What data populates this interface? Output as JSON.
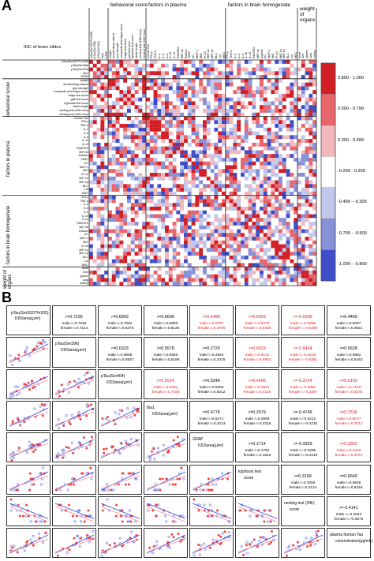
{
  "panels": {
    "a_letter": "A",
    "b_letter": "B"
  },
  "heatmap": {
    "corner_label": "IHC of brain slides",
    "groups": [
      "behavioral score",
      "factors in plasma",
      "factors in brain homogenate",
      "weight of organs"
    ],
    "row_groups": [
      "behavioral score",
      "factors in plasma",
      "factors in brain homogenate",
      "weight of organs"
    ],
    "ihc_rows": [
      "pTau(Ser202/Thr205)",
      "pTau(Ser396)",
      "pTau(Ser404)",
      "Iba1",
      "GFAP"
    ],
    "behavior_rows": [
      "weight",
      "accelerating rotarod",
      "grip strength",
      "composite phenotype score",
      "ledge test score",
      "gait test score",
      "kyphosis test score",
      "stride length",
      "nesting test (18th hour)",
      "nesting test (24th hour)"
    ],
    "plasma_rows": [
      "human Tau",
      "IFN-γ",
      "TNF-α",
      "IL-2",
      "IL-5",
      "IL-6",
      "IL-10",
      "IL-13",
      "RANTES",
      "MIP-3α",
      "Eotaxin",
      "TARC",
      "KC",
      "MCP-1",
      "MIG",
      "IP-10",
      "MIP-1α",
      "MIP-1β",
      "BLC",
      "LIX",
      "MDC"
    ],
    "brain_rows": [
      "IFN-γ",
      "TNF-α",
      "IL-2",
      "IL-5",
      "IL-6",
      "IL-10",
      "IL-13",
      "RANTES",
      "MIP-3α",
      "Eotaxin",
      "KC",
      "MCP-1",
      "MIG",
      "IP-10",
      "MIP-1α",
      "MIP-1β",
      "BLC",
      "LIX",
      "MDC"
    ],
    "organ_rows": [
      "heart",
      "liver",
      "spleen",
      "lung",
      "kidney"
    ],
    "legend": [
      "0.800 - 1.000",
      "0.500 - 0.799",
      "0.300 - 0.499",
      "-0.299 - 0.299",
      "-0.499 - -0.300",
      "-0.799 - -0.500",
      "-1.000 - -0.800"
    ],
    "legend_colors": [
      "#d11f25",
      "#e7656b",
      "#f2b8bb",
      "#ffffff",
      "#c2c8ec",
      "#8791d8",
      "#3f4ec8"
    ]
  },
  "matrix": {
    "variables": [
      {
        "name": "pTau(Ser202/Thr205)",
        "unit": "IOD/area(μm²)"
      },
      {
        "name": "pTau(Ser396)",
        "unit": "IOD/area(μm²)"
      },
      {
        "name": "pTau(Ser404)",
        "unit": "IOD/area(μm²)"
      },
      {
        "name": "Iba1",
        "unit": "IOD/area(μm²)"
      },
      {
        "name": "GFAP",
        "unit": "IOD/area(μm²)"
      },
      {
        "name": "kyphosis test",
        "unit": "score"
      },
      {
        "name": "nesting test (24h)",
        "unit": "score"
      },
      {
        "name": "plasma human Tau",
        "unit": "concentration(pg/mL)"
      }
    ],
    "cells": [
      {
        "r": 0,
        "c": 1,
        "main": "r=0.7235",
        "male": "male r=0.7248",
        "female": "female r=0.7214",
        "hl": false
      },
      {
        "r": 0,
        "c": 2,
        "main": "r=0.6963",
        "male": "male r=0.7092",
        "female": "female r=0.6375",
        "hl": false
      },
      {
        "r": 0,
        "c": 3,
        "main": "r=0.6606",
        "male": "male r=0.6800",
        "female": "female r=0.6125",
        "hl": false
      },
      {
        "r": 0,
        "c": 4,
        "main": "r=0.5488",
        "male": "male r=0.5787",
        "female": "female r=0.3765",
        "hl": true
      },
      {
        "r": 0,
        "c": 5,
        "main": "r=0.5993",
        "male": "male r=0.6723",
        "female": "female r=0.5439",
        "hl": true
      },
      {
        "r": 0,
        "c": 6,
        "main": "r=-0.6596",
        "male": "male r=-0.6936",
        "female": "female r=-0.6389",
        "hl": true
      },
      {
        "r": 0,
        "c": 7,
        "main": "r=0.4469",
        "male": "male r=0.5097",
        "female": "female r=0.3921",
        "hl": false
      },
      {
        "r": 1,
        "c": 2,
        "main": "r=0.6323",
        "male": "male r=0.6656",
        "female": "female r=0.5937",
        "hl": false
      },
      {
        "r": 1,
        "c": 3,
        "main": "r=0.5578",
        "male": "male r=0.5950",
        "female": "female r=0.5188",
        "hl": false
      },
      {
        "r": 1,
        "c": 4,
        "main": "r=0.2729",
        "male": "male r=0.2943",
        "female": "female r=0.2475",
        "hl": false
      },
      {
        "r": 1,
        "c": 5,
        "main": "r=0.6023",
        "male": "male r=0.6141",
        "female": "female r=0.5953",
        "hl": true
      },
      {
        "r": 1,
        "c": 6,
        "main": "r=-0.6434",
        "male": "male r=-0.6516",
        "female": "female r=-0.6381",
        "hl": true
      },
      {
        "r": 1,
        "c": 7,
        "main": "r=0.5628",
        "male": "male r=0.5862",
        "female": "female r=0.5440",
        "hl": false
      },
      {
        "r": 2,
        "c": 3,
        "main": "r=0.5524",
        "male": "male r=0.5461",
        "female": "female r=0.7165",
        "hl": true
      },
      {
        "r": 2,
        "c": 4,
        "main": "r=0.5246",
        "male": "male r=0.5306",
        "female": "female r=0.5012",
        "hl": false
      },
      {
        "r": 2,
        "c": 5,
        "main": "r=0.4496",
        "male": "male r=0.4841",
        "female": "female r=0.4116",
        "hl": true
      },
      {
        "r": 2,
        "c": 6,
        "main": "r=-0.3724",
        "male": "male r=-0.3994",
        "female": "female r=-0.3497",
        "hl": true
      },
      {
        "r": 2,
        "c": 7,
        "main": "r=0.6150",
        "male": "male r=0.7102",
        "female": "female r=0.5275",
        "hl": true
      },
      {
        "r": 3,
        "c": 4,
        "main": "r=0.4778",
        "male": "male r=0.5271",
        "female": "female r=0.4213",
        "hl": false
      },
      {
        "r": 3,
        "c": 5,
        "main": "r=0.2579",
        "male": "male r=0.2808",
        "female": "female r=0.2315",
        "hl": false
      },
      {
        "r": 3,
        "c": 6,
        "main": "r=-0.4745",
        "male": "male r=-0.5212",
        "female": "female r=-0.4210",
        "hl": false
      },
      {
        "r": 3,
        "c": 7,
        "main": "r=0.7536",
        "male": "male r=0.8077",
        "female": "female r=0.7012",
        "hl": true
      },
      {
        "r": 4,
        "c": 5,
        "main": "r=0.1714",
        "male": "male r=0.1792",
        "female": "female r=0.1622",
        "hl": false
      },
      {
        "r": 4,
        "c": 6,
        "main": "r=-0.3329",
        "male": "male r=-0.3236",
        "female": "female r=-0.3419",
        "hl": false
      },
      {
        "r": 4,
        "c": 7,
        "main": "r=0.2952",
        "male": "male r=0.3419",
        "female": "female r=0.2474",
        "hl": true
      },
      {
        "r": 5,
        "c": 6,
        "main": "r=0.3199",
        "male": "male r=0.3256",
        "female": "female r=0.3124",
        "hl": false
      },
      {
        "r": 5,
        "c": 7,
        "main": "r=0.6649",
        "male": "male r=0.6826",
        "female": "female r=0.6419",
        "hl": false
      },
      {
        "r": 6,
        "c": 7,
        "main": "r=-0.4141",
        "male": "male r=-0.4543",
        "female": "female r=-0.3673",
        "hl": false
      }
    ],
    "series_colors": {
      "male": "#3344dd",
      "female": "#ee4444",
      "trend_female": "#ff8a8a"
    }
  }
}
